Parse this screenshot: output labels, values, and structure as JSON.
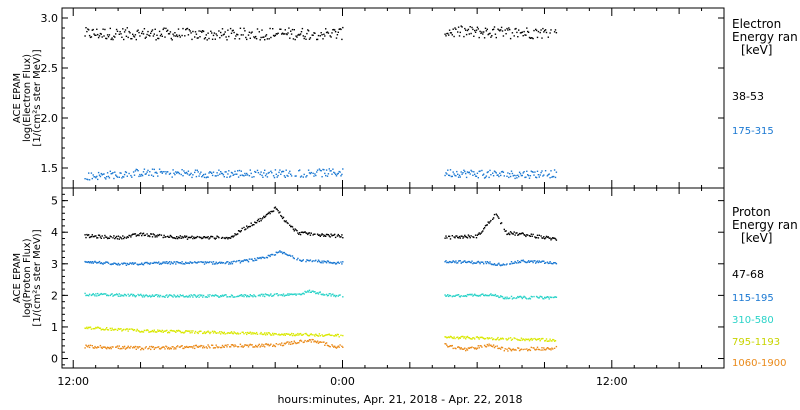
{
  "chart_data": [
    {
      "type": "scatter",
      "panel": "electron",
      "ylabel": [
        "ACE EPAM",
        "log(Electron Flux)",
        "[1/(cm²s ster MeV)]"
      ],
      "ylim": [
        1.3,
        3.1
      ],
      "yticks": [
        1.5,
        2.0,
        2.5,
        3.0
      ],
      "ytick_labels": [
        "1.5",
        "2.0",
        "2.5",
        "3.0"
      ],
      "legend_title": [
        "Electron",
        "Energy ran"
      ],
      "legend_unit": "[keV]",
      "gaps_hours": [
        [
          0,
          4.5
        ]
      ],
      "series": [
        {
          "name": "38-53",
          "color": "#000000",
          "base": [
            [
              -11.5,
              2.85
            ],
            [
              -9,
              2.85
            ],
            [
              -6,
              2.84
            ],
            [
              -3,
              2.85
            ],
            [
              -0.3,
              2.85
            ],
            [
              4.5,
              2.87
            ],
            [
              7,
              2.86
            ],
            [
              9.5,
              2.86
            ]
          ],
          "noise": 0.06
        },
        {
          "name": "175-315",
          "color": "#1a78d2",
          "base": [
            [
              -11.5,
              1.42
            ],
            [
              -9,
              1.46
            ],
            [
              -6,
              1.45
            ],
            [
              -3,
              1.45
            ],
            [
              -0.3,
              1.46
            ],
            [
              4.5,
              1.46
            ],
            [
              7,
              1.44
            ],
            [
              9.5,
              1.45
            ]
          ],
          "noise": 0.04
        }
      ]
    },
    {
      "type": "scatter",
      "panel": "proton",
      "ylabel": [
        "ACE EPAM",
        "log(Proton Flux)",
        "[1/(cm²s ster MeV)]"
      ],
      "ylim": [
        -0.3,
        5.4
      ],
      "yticks": [
        0,
        1,
        2,
        3,
        4,
        5
      ],
      "ytick_labels": [
        "0",
        "1",
        "2",
        "3",
        "4",
        "5"
      ],
      "legend_title": [
        "Proton",
        "Energy ran"
      ],
      "legend_unit": "[keV]",
      "gaps_hours": [
        [
          0,
          4.5
        ]
      ],
      "series": [
        {
          "name": "47-68",
          "color": "#000000",
          "base": [
            [
              -11.5,
              3.9
            ],
            [
              -10,
              3.85
            ],
            [
              -9,
              3.95
            ],
            [
              -7,
              3.85
            ],
            [
              -5,
              3.85
            ],
            [
              -4.5,
              4.1
            ],
            [
              -3.5,
              4.5
            ],
            [
              -3,
              4.8
            ],
            [
              -2.5,
              4.3
            ],
            [
              -2,
              4.0
            ],
            [
              -0.3,
              3.9
            ],
            [
              4.5,
              3.85
            ],
            [
              6,
              3.9
            ],
            [
              6.8,
              4.6
            ],
            [
              7.3,
              4.0
            ],
            [
              8,
              3.95
            ],
            [
              9.5,
              3.8
            ]
          ],
          "noise": 0.05
        },
        {
          "name": "115-195",
          "color": "#1a78d2",
          "base": [
            [
              -11.5,
              3.1
            ],
            [
              -10,
              3.0
            ],
            [
              -8,
              3.05
            ],
            [
              -5,
              3.05
            ],
            [
              -3.5,
              3.2
            ],
            [
              -2.8,
              3.4
            ],
            [
              -2,
              3.15
            ],
            [
              -0.3,
              3.05
            ],
            [
              4.5,
              3.1
            ],
            [
              6.5,
              3.05
            ],
            [
              7,
              3.0
            ],
            [
              8,
              3.1
            ],
            [
              9.5,
              3.05
            ]
          ],
          "noise": 0.04
        },
        {
          "name": "310-580",
          "color": "#2ad3c8",
          "base": [
            [
              -11.5,
              2.05
            ],
            [
              -8,
              2.0
            ],
            [
              -5,
              2.0
            ],
            [
              -2,
              2.05
            ],
            [
              -1.5,
              2.15
            ],
            [
              -0.3,
              2.0
            ],
            [
              4.5,
              2.0
            ],
            [
              6.5,
              2.05
            ],
            [
              7.2,
              1.95
            ],
            [
              9.5,
              1.95
            ]
          ],
          "noise": 0.04
        },
        {
          "name": "795-1193",
          "color": "#d9e800",
          "base": [
            [
              -11.5,
              1.0
            ],
            [
              -9,
              0.9
            ],
            [
              -6,
              0.85
            ],
            [
              -3,
              0.8
            ],
            [
              -0.3,
              0.75
            ],
            [
              4.5,
              0.7
            ],
            [
              7,
              0.65
            ],
            [
              9.5,
              0.6
            ]
          ],
          "noise": 0.04
        },
        {
          "name": "1060-1900",
          "color": "#ea8a1a",
          "base": [
            [
              -11.5,
              0.4
            ],
            [
              -9,
              0.35
            ],
            [
              -6,
              0.4
            ],
            [
              -3,
              0.45
            ],
            [
              -1.5,
              0.6
            ],
            [
              -0.3,
              0.4
            ],
            [
              4.5,
              0.45
            ],
            [
              5.5,
              0.3
            ],
            [
              6.5,
              0.45
            ],
            [
              7.2,
              0.3
            ],
            [
              9.5,
              0.35
            ]
          ],
          "noise": 0.05
        }
      ]
    }
  ],
  "x_axis": {
    "xlim_hours": [
      -12.5,
      17
    ],
    "ticks_hours": [
      -12,
      0,
      12
    ],
    "tick_labels": [
      "12:00",
      "0:00",
      "12:00"
    ],
    "xlabel": "hours:minutes, Apr. 21, 2018 - Apr. 22, 2018"
  }
}
